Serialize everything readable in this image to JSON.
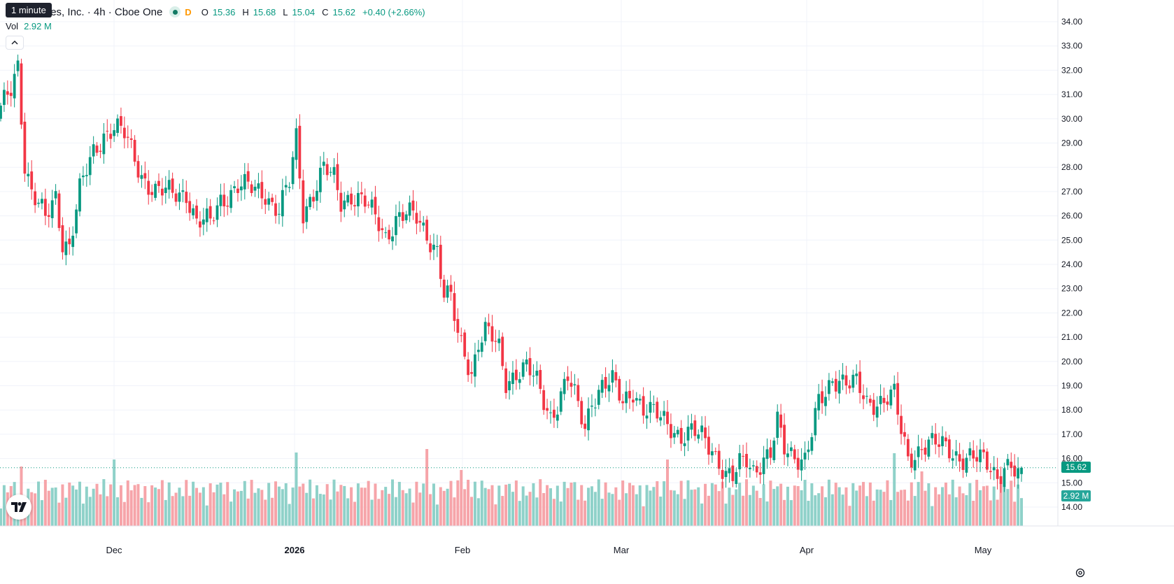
{
  "legend": {
    "title": "echnologies, Inc. · 4h · Cboe One",
    "flag": "D",
    "o_label": "O",
    "o_value": "15.36",
    "h_label": "H",
    "h_value": "15.68",
    "l_label": "L",
    "l_value": "15.04",
    "c_label": "C",
    "c_value": "15.62",
    "change": "+0.40 (+2.66%)"
  },
  "tooltip": "1 minute",
  "volume": {
    "label": "Vol",
    "value": "2.92 M"
  },
  "price_tag": "15.62",
  "volume_tag": "2.92 M",
  "colors": {
    "up": "#089981",
    "down": "#f23645",
    "up_volume": "#8fd1c9",
    "down_volume": "#f6a4a9",
    "grid": "#f0f3fa",
    "text": "#131722"
  },
  "chart_data": {
    "type": "candlestick",
    "y_axis": {
      "ticks": [
        "14.00",
        "15.00",
        "16.00",
        "17.00",
        "18.00",
        "19.00",
        "20.00",
        "21.00",
        "22.00",
        "23.00",
        "24.00",
        "25.00",
        "26.00",
        "27.00",
        "28.00",
        "29.00",
        "30.00",
        "31.00",
        "32.00",
        "33.00",
        "34.00"
      ],
      "range": [
        13.4,
        34.4
      ]
    },
    "x_axis": {
      "labels": [
        "Dec",
        "2026",
        "Feb",
        "Mar",
        "Apr",
        "May"
      ]
    },
    "last_price": 15.62,
    "ohlc_approx": [
      {
        "x": "Nov start",
        "close": 30.5
      },
      {
        "x": "Nov peak",
        "high": 32.7,
        "close": 32.2
      },
      {
        "x": "Nov low",
        "low": 23.6,
        "close": 24.8
      },
      {
        "x": "Dec",
        "close": 29.3
      },
      {
        "x": "Dec high",
        "high": 30.4
      },
      {
        "x": "Dec mid",
        "close": 27.0
      },
      {
        "x": "2026",
        "high": 29.8,
        "close": 29.2
      },
      {
        "x": "Jan mid",
        "close": 26.9
      },
      {
        "x": "Jan end",
        "close": 25.5
      },
      {
        "x": "Feb",
        "close": 21.0
      },
      {
        "x": "Feb mid",
        "close": 19.3
      },
      {
        "x": "Mar",
        "close": 18.2
      },
      {
        "x": "Mar mid",
        "close": 17.7
      },
      {
        "x": "Mar end",
        "close": 15.3
      },
      {
        "x": "Apr",
        "close": 16.0
      },
      {
        "x": "Apr mid",
        "high": 20.1,
        "close": 19.5
      },
      {
        "x": "Apr end",
        "close": 18.6
      },
      {
        "x": "May",
        "close": 16.5
      },
      {
        "x": "May end",
        "open": 15.36,
        "high": 15.68,
        "low": 15.04,
        "close": 15.62
      }
    ]
  }
}
